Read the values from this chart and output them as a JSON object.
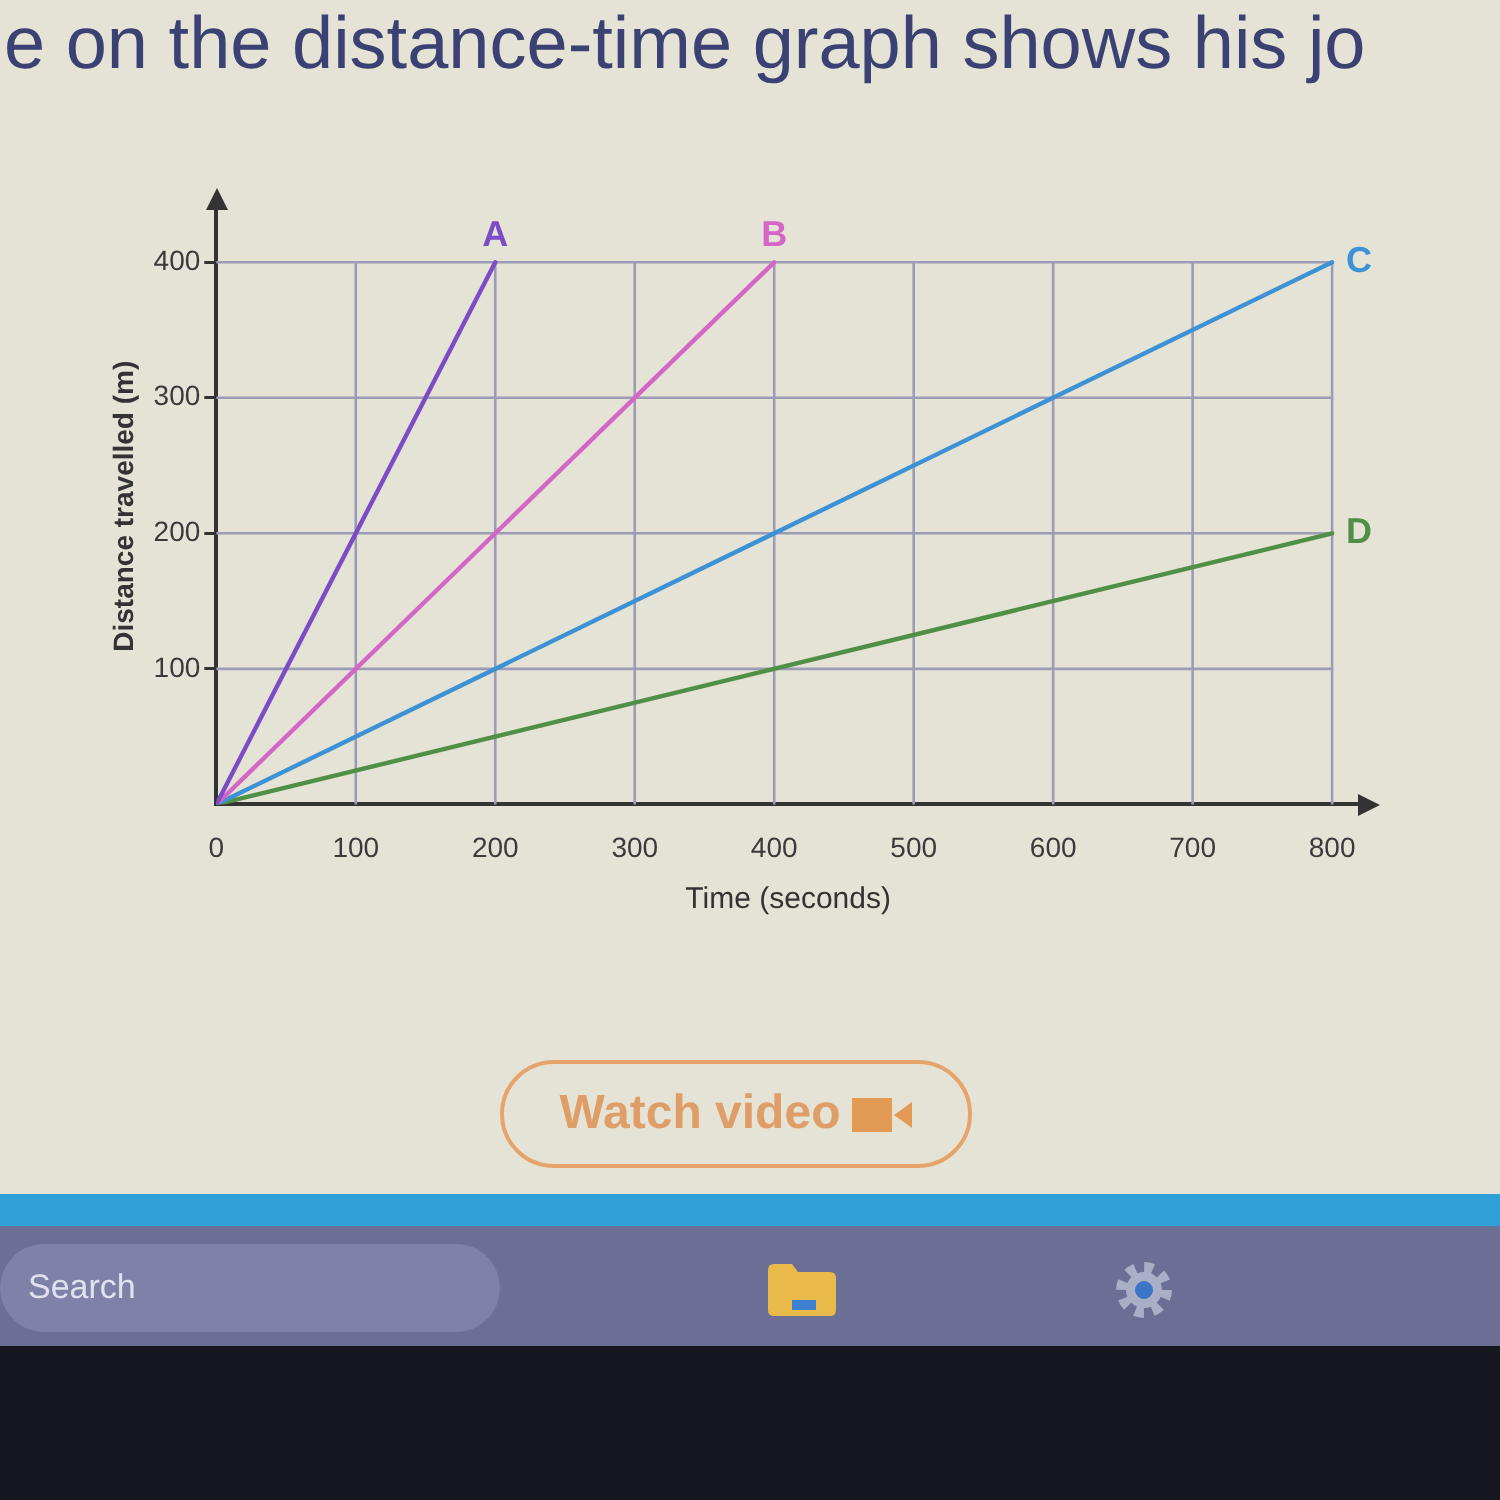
{
  "chart_data": {
    "type": "line",
    "xlabel": "Time (seconds)",
    "ylabel": "Distance travelled (m)",
    "annotations": [
      "e on the distance-time graph shows his jo",
      "Watch video",
      "Search"
    ],
    "series": [
      {
        "name": "A",
        "color": "#7b4cc6",
        "x": [
          0,
          200
        ],
        "values": [
          0,
          400
        ]
      },
      {
        "name": "B",
        "color": "#d466c6",
        "x": [
          0,
          400
        ],
        "values": [
          0,
          400
        ]
      },
      {
        "name": "C",
        "color": "#3d92d6",
        "x": [
          0,
          800
        ],
        "values": [
          0,
          400
        ]
      },
      {
        "name": "D",
        "color": "#4f8f46",
        "x": [
          0,
          800
        ],
        "values": [
          0,
          200
        ]
      }
    ],
    "xlim": [
      0,
      820
    ],
    "ylim": [
      0,
      440
    ],
    "xticks": [
      0,
      100,
      200,
      300,
      400,
      500,
      600,
      700,
      800
    ],
    "yticks": [
      100,
      200,
      300,
      400
    ],
    "grid": true,
    "marker": "none",
    "line_style": "solid"
  }
}
